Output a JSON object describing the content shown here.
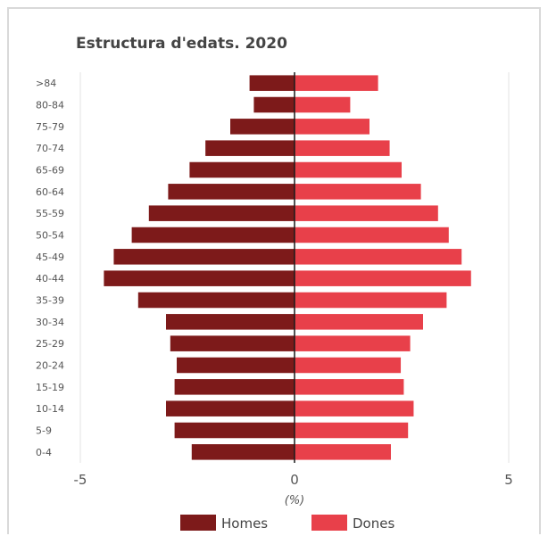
{
  "chart_data": {
    "type": "bar",
    "orientation": "horizontal-population-pyramid",
    "title": "Estructura d'edats. 2020",
    "xlabel": "(%)",
    "xlim": [
      -5,
      5
    ],
    "xticks": [
      "-5",
      "0",
      "5"
    ],
    "grid": true,
    "legend_position": "bottom",
    "categories": [
      ">84",
      "80-84",
      "75-79",
      "70-74",
      "65-69",
      "60-64",
      "55-59",
      "50-54",
      "45-49",
      "40-44",
      "35-39",
      "30-34",
      "25-29",
      "20-24",
      "15-19",
      "10-14",
      "5-9",
      "0-4"
    ],
    "series": [
      {
        "name": "Homes",
        "color": "#7d1a1a",
        "values": [
          -1.05,
          -0.95,
          -1.5,
          -2.08,
          -2.45,
          -2.95,
          -3.4,
          -3.8,
          -4.22,
          -4.45,
          -3.65,
          -3.0,
          -2.9,
          -2.75,
          -2.8,
          -3.0,
          -2.8,
          -2.4
        ]
      },
      {
        "name": "Dones",
        "color": "#e8404a",
        "values": [
          1.95,
          1.3,
          1.75,
          2.22,
          2.5,
          2.95,
          3.35,
          3.6,
          3.9,
          4.12,
          3.55,
          3.0,
          2.7,
          2.48,
          2.55,
          2.78,
          2.65,
          2.25
        ]
      }
    ]
  }
}
